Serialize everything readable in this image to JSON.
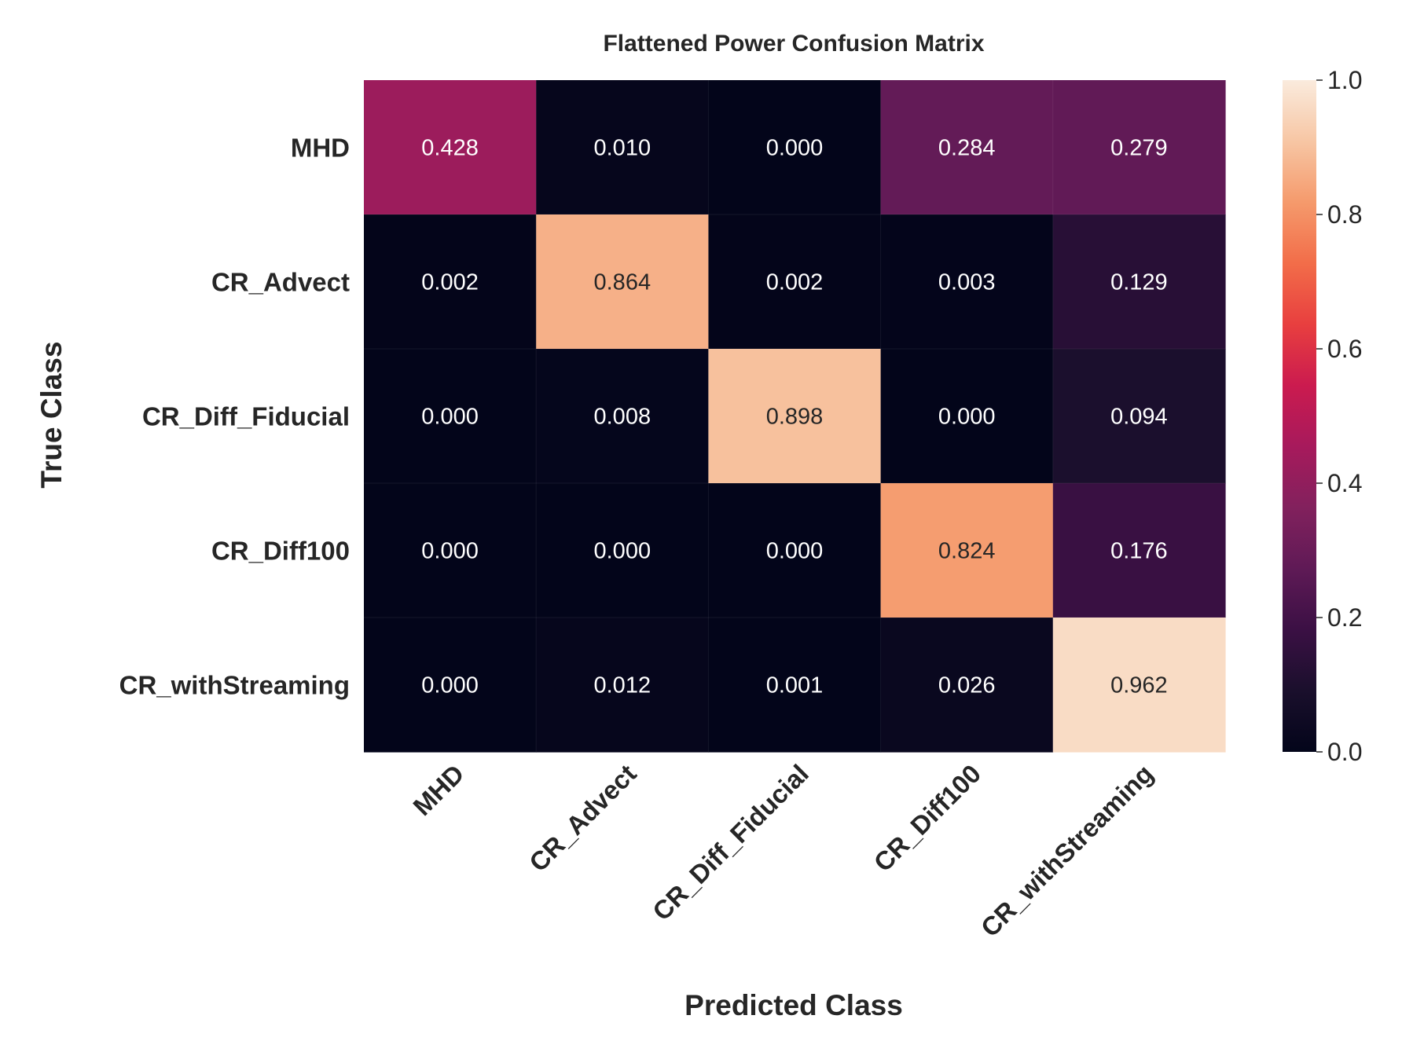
{
  "chart_data": {
    "type": "heatmap",
    "title": "Flattened Power Confusion Matrix",
    "xlabel": "Predicted Class",
    "ylabel": "True Class",
    "x_categories": [
      "MHD",
      "CR_Advect",
      "CR_Diff_Fiducial",
      "CR_Diff100",
      "CR_withStreaming"
    ],
    "y_categories": [
      "MHD",
      "CR_Advect",
      "CR_Diff_Fiducial",
      "CR_Diff100",
      "CR_withStreaming"
    ],
    "values": [
      [
        0.428,
        0.01,
        0.0,
        0.284,
        0.279
      ],
      [
        0.002,
        0.864,
        0.002,
        0.003,
        0.129
      ],
      [
        0.0,
        0.008,
        0.898,
        0.0,
        0.094
      ],
      [
        0.0,
        0.0,
        0.0,
        0.824,
        0.176
      ],
      [
        0.0,
        0.012,
        0.001,
        0.026,
        0.962
      ]
    ],
    "cell_labels": [
      [
        "0.428",
        "0.010",
        "0.000",
        "0.284",
        "0.279"
      ],
      [
        "0.002",
        "0.864",
        "0.002",
        "0.003",
        "0.129"
      ],
      [
        "0.000",
        "0.008",
        "0.898",
        "0.000",
        "0.094"
      ],
      [
        "0.000",
        "0.000",
        "0.000",
        "0.824",
        "0.176"
      ],
      [
        "0.000",
        "0.012",
        "0.001",
        "0.026",
        "0.962"
      ]
    ],
    "colorbar": {
      "range": [
        0.0,
        1.0
      ],
      "ticks": [
        0.0,
        0.2,
        0.4,
        0.6,
        0.8,
        1.0
      ],
      "tick_labels": [
        "0.0",
        "0.2",
        "0.4",
        "0.6",
        "0.8",
        "1.0"
      ]
    },
    "colormap": "rocket",
    "colormap_stops": [
      "#03051a",
      "#1a0f2c",
      "#3b1044",
      "#5f1a56",
      "#82215d",
      "#a71a5c",
      "#cb1b4f",
      "#e83f3f",
      "#f26d49",
      "#f59a6c",
      "#f7c6a4",
      "#faebdd"
    ],
    "grid": false
  }
}
